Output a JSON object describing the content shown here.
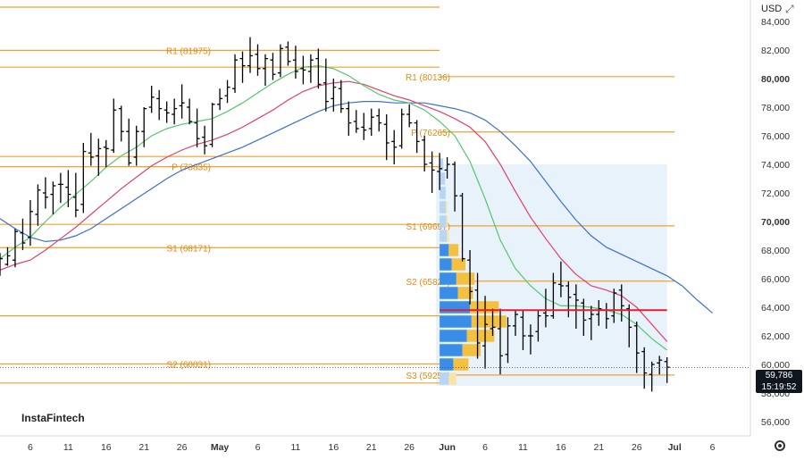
{
  "header": {
    "currency": "USD",
    "window_controls": [
      {
        "name": "expand",
        "glyph": "⤢"
      },
      {
        "name": "close",
        "glyph": "✕"
      }
    ]
  },
  "brand": {
    "logo_text": "InstaFintech"
  },
  "price_badge": {
    "price": "59,786",
    "time": "15:19:52"
  },
  "colors": {
    "pivot": "#f0a030",
    "pivot_text": "#e08a10",
    "candle": "#000000",
    "ma_fast": "#55c66a",
    "ma_mid": "#e0406a",
    "ma_slow": "#3a70d0",
    "poc": "#e02030",
    "vp_blue": "#3a8ee8",
    "vp_blue_light": "#b6d6f4",
    "vp_yellow": "#f4c040",
    "vp_yellow_light": "#f8e4a8",
    "vp_box": "#e8f2fb"
  },
  "chart_data": {
    "type": "line",
    "y_axis": {
      "ticks": [
        "56,000",
        "58,000",
        "60,000",
        "62,000",
        "64,000",
        "66,000",
        "68,000",
        "70,000",
        "72,000",
        "74,000",
        "76,000",
        "78,000",
        "80,000",
        "82,000",
        "84,000"
      ],
      "tick_values": [
        56000,
        58000,
        60000,
        62000,
        64000,
        66000,
        68000,
        70000,
        72000,
        74000,
        76000,
        78000,
        80000,
        82000,
        84000
      ],
      "bold_ticks": [
        "70,000",
        "80,000"
      ],
      "range": [
        55000,
        85500
      ]
    },
    "x_axis": {
      "ticks": [
        {
          "label": "6",
          "day": 6
        },
        {
          "label": "11",
          "day": 11
        },
        {
          "label": "16",
          "day": 16
        },
        {
          "label": "21",
          "day": 21
        },
        {
          "label": "26",
          "day": 26
        },
        {
          "label": "May",
          "day": 31,
          "bold": true
        },
        {
          "label": "6",
          "day": 36
        },
        {
          "label": "11",
          "day": 41
        },
        {
          "label": "16",
          "day": 46
        },
        {
          "label": "21",
          "day": 51
        },
        {
          "label": "26",
          "day": 56
        },
        {
          "label": "Jun",
          "day": 61,
          "bold": true
        },
        {
          "label": "6",
          "day": 66
        },
        {
          "label": "11",
          "day": 71
        },
        {
          "label": "16",
          "day": 76
        },
        {
          "label": "21",
          "day": 81
        },
        {
          "label": "26",
          "day": 86
        },
        {
          "label": "Jul",
          "day": 91,
          "bold": true
        },
        {
          "label": "6",
          "day": 96
        }
      ],
      "range": [
        2,
        101
      ]
    },
    "pivots_prev": [
      {
        "label": "",
        "value": 85000
      },
      {
        "label": "R1 (81975)",
        "value": 81975
      },
      {
        "label": "",
        "value": 80800
      },
      {
        "label": "P (73835)",
        "value": 73835
      },
      {
        "label": "",
        "value": 74550
      },
      {
        "label": "S1 (68171)",
        "value": 68171
      },
      {
        "label": "",
        "value": 69800
      },
      {
        "label": "",
        "value": 63400
      },
      {
        "label": "S2 (60031)",
        "value": 60031
      },
      {
        "label": "",
        "value": 58700
      }
    ],
    "pivots_curr": [
      {
        "label": "R1 (80136)",
        "value": 80136
      },
      {
        "label": "P (76265)",
        "value": 76265
      },
      {
        "label": "S1 (69697)",
        "value": 69697
      },
      {
        "label": "S2 (65827)",
        "value": 65827
      },
      {
        "label": "S3 (59259)",
        "value": 59259
      }
    ],
    "poc": {
      "value": 63800,
      "from_day": 60,
      "to_day": 90
    },
    "current_price": {
      "value": 59786
    },
    "ohlc": [
      [
        2,
        66600,
        67800,
        66200,
        67400
      ],
      [
        3,
        67000,
        68200,
        66900,
        67600
      ],
      [
        4,
        67300,
        69500,
        66800,
        69300
      ],
      [
        5,
        69200,
        70200,
        68000,
        68500
      ],
      [
        6,
        68900,
        71500,
        68300,
        70700
      ],
      [
        7,
        70500,
        72600,
        69700,
        72200
      ],
      [
        8,
        72000,
        73100,
        70900,
        71700
      ],
      [
        9,
        71900,
        72800,
        70500,
        72500
      ],
      [
        10,
        72600,
        73400,
        71300,
        72600
      ],
      [
        11,
        72400,
        73600,
        71000,
        71900
      ],
      [
        12,
        71700,
        73400,
        70300,
        70800
      ],
      [
        13,
        71200,
        75500,
        70600,
        74900
      ],
      [
        14,
        74800,
        76200,
        73900,
        74500
      ],
      [
        15,
        74600,
        75800,
        73200,
        75100
      ],
      [
        16,
        75200,
        75700,
        73800,
        75100
      ],
      [
        17,
        75000,
        78600,
        74800,
        77800
      ],
      [
        18,
        77900,
        78100,
        75600,
        76300
      ],
      [
        19,
        76300,
        77200,
        73900,
        74100
      ],
      [
        20,
        74500,
        76700,
        73900,
        76300
      ],
      [
        21,
        76300,
        78000,
        75200,
        77900
      ],
      [
        22,
        78000,
        79500,
        77600,
        78700
      ],
      [
        23,
        78600,
        79200,
        77100,
        77900
      ],
      [
        24,
        77800,
        78400,
        76900,
        77600
      ],
      [
        25,
        77500,
        78600,
        76800,
        77900
      ],
      [
        26,
        78100,
        79600,
        77200,
        78300
      ],
      [
        27,
        78000,
        78600,
        76800,
        77000
      ],
      [
        28,
        76900,
        77900,
        75200,
        75800
      ],
      [
        29,
        75900,
        76700,
        74700,
        75300
      ],
      [
        30,
        75400,
        78300,
        75200,
        78200
      ],
      [
        31,
        78200,
        79300,
        77800,
        78600
      ],
      [
        32,
        78800,
        79900,
        78300,
        79400
      ],
      [
        33,
        79300,
        81700,
        79000,
        81300
      ],
      [
        34,
        81400,
        81900,
        79700,
        80900
      ],
      [
        35,
        80900,
        82900,
        80400,
        81600
      ],
      [
        36,
        81700,
        82400,
        80200,
        80700
      ],
      [
        37,
        80700,
        81700,
        79500,
        81400
      ],
      [
        38,
        81300,
        81800,
        79900,
        80300
      ],
      [
        39,
        80400,
        82400,
        80100,
        82100
      ],
      [
        40,
        82200,
        82600,
        80900,
        81200
      ],
      [
        41,
        81300,
        82300,
        80000,
        80500
      ],
      [
        42,
        80700,
        81600,
        79600,
        80600
      ],
      [
        43,
        80500,
        81700,
        79700,
        81300
      ],
      [
        44,
        81400,
        82100,
        79300,
        79600
      ],
      [
        45,
        79700,
        81400,
        77700,
        78400
      ],
      [
        46,
        78600,
        80000,
        77700,
        79400
      ],
      [
        47,
        79300,
        79900,
        77600,
        77900
      ],
      [
        48,
        77900,
        78400,
        76000,
        76900
      ],
      [
        49,
        77000,
        77800,
        76200,
        76500
      ],
      [
        50,
        76600,
        77600,
        75700,
        76400
      ],
      [
        51,
        76500,
        77900,
        76000,
        77300
      ],
      [
        52,
        77400,
        77900,
        76300,
        76900
      ],
      [
        53,
        76800,
        77500,
        74300,
        75500
      ],
      [
        54,
        75600,
        76400,
        74000,
        75200
      ],
      [
        55,
        75300,
        77900,
        75100,
        77500
      ],
      [
        56,
        77500,
        78200,
        76600,
        76900
      ],
      [
        57,
        76900,
        77100,
        74800,
        75600
      ],
      [
        58,
        75700,
        76000,
        73500,
        74000
      ],
      [
        59,
        74100,
        74900,
        72000,
        73600
      ],
      [
        60,
        73500,
        74800,
        72200,
        73700
      ],
      [
        61,
        73600,
        74500,
        73000,
        74000
      ],
      [
        62,
        74000,
        74200,
        70700,
        71800
      ],
      [
        63,
        71800,
        72000,
        67200,
        67400
      ],
      [
        64,
        67300,
        68000,
        64200,
        65100
      ],
      [
        65,
        65200,
        66400,
        60400,
        61500
      ],
      [
        66,
        61300,
        64800,
        59700,
        62800
      ],
      [
        67,
        62500,
        63900,
        62000,
        62600
      ],
      [
        68,
        62500,
        63900,
        59300,
        60600
      ],
      [
        69,
        60700,
        63300,
        60100,
        62700
      ],
      [
        70,
        62700,
        63800,
        62000,
        63500
      ],
      [
        71,
        63300,
        63800,
        61000,
        62000
      ],
      [
        72,
        62000,
        62800,
        60700,
        62000
      ],
      [
        73,
        62300,
        63800,
        61600,
        63400
      ],
      [
        74,
        63600,
        65300,
        62600,
        63400
      ],
      [
        75,
        63400,
        66400,
        63200,
        65700
      ],
      [
        76,
        65600,
        67200,
        64700,
        65500
      ],
      [
        77,
        65500,
        65800,
        63300,
        64700
      ],
      [
        78,
        64900,
        65600,
        62500,
        64500
      ],
      [
        79,
        64300,
        64600,
        62000,
        63100
      ],
      [
        80,
        63200,
        64100,
        61700,
        63500
      ],
      [
        81,
        63500,
        64500,
        62700,
        63900
      ],
      [
        82,
        63800,
        64300,
        62500,
        63200
      ],
      [
        83,
        63400,
        65300,
        62900,
        65000
      ],
      [
        84,
        65200,
        65600,
        63000,
        64100
      ],
      [
        85,
        63900,
        64200,
        61200,
        62600
      ],
      [
        86,
        62700,
        63000,
        59400,
        60800
      ],
      [
        87,
        60900,
        61200,
        58300,
        59400
      ],
      [
        88,
        59300,
        60200,
        58100,
        60000
      ],
      [
        89,
        60100,
        60600,
        59300,
        60300
      ],
      [
        90,
        60200,
        60500,
        58700,
        59800
      ]
    ],
    "ma_fast": [
      [
        2,
        67400
      ],
      [
        4,
        68200
      ],
      [
        6,
        68900
      ],
      [
        8,
        70000
      ],
      [
        10,
        71000
      ],
      [
        12,
        71900
      ],
      [
        14,
        72800
      ],
      [
        16,
        73800
      ],
      [
        18,
        74600
      ],
      [
        20,
        75200
      ],
      [
        22,
        76000
      ],
      [
        24,
        76500
      ],
      [
        26,
        76800
      ],
      [
        28,
        77000
      ],
      [
        30,
        77200
      ],
      [
        32,
        77700
      ],
      [
        34,
        78300
      ],
      [
        36,
        79000
      ],
      [
        38,
        79700
      ],
      [
        40,
        80300
      ],
      [
        42,
        80800
      ],
      [
        44,
        80900
      ],
      [
        46,
        80700
      ],
      [
        48,
        80200
      ],
      [
        50,
        79500
      ],
      [
        52,
        78900
      ],
      [
        54,
        78500
      ],
      [
        56,
        78300
      ],
      [
        58,
        77800
      ],
      [
        60,
        77000
      ],
      [
        62,
        76000
      ],
      [
        64,
        74200
      ],
      [
        66,
        71600
      ],
      [
        68,
        68700
      ],
      [
        70,
        66700
      ],
      [
        72,
        65500
      ],
      [
        74,
        64600
      ],
      [
        76,
        64100
      ],
      [
        78,
        64100
      ],
      [
        80,
        64000
      ],
      [
        82,
        63800
      ],
      [
        84,
        63500
      ],
      [
        86,
        62800
      ],
      [
        88,
        61800
      ],
      [
        90,
        61000
      ]
    ],
    "ma_mid": [
      [
        2,
        66600
      ],
      [
        4,
        67000
      ],
      [
        6,
        67300
      ],
      [
        8,
        68000
      ],
      [
        10,
        68800
      ],
      [
        12,
        69600
      ],
      [
        14,
        70500
      ],
      [
        16,
        71400
      ],
      [
        18,
        72300
      ],
      [
        20,
        73100
      ],
      [
        22,
        73900
      ],
      [
        24,
        74500
      ],
      [
        26,
        75000
      ],
      [
        28,
        75400
      ],
      [
        30,
        75700
      ],
      [
        32,
        76100
      ],
      [
        34,
        76600
      ],
      [
        36,
        77200
      ],
      [
        38,
        77800
      ],
      [
        40,
        78500
      ],
      [
        42,
        79100
      ],
      [
        44,
        79500
      ],
      [
        46,
        79700
      ],
      [
        48,
        79800
      ],
      [
        50,
        79600
      ],
      [
        52,
        79200
      ],
      [
        54,
        78800
      ],
      [
        56,
        78500
      ],
      [
        58,
        78100
      ],
      [
        60,
        77700
      ],
      [
        62,
        77200
      ],
      [
        64,
        76600
      ],
      [
        66,
        75600
      ],
      [
        68,
        74000
      ],
      [
        70,
        72100
      ],
      [
        72,
        70300
      ],
      [
        74,
        68800
      ],
      [
        76,
        67400
      ],
      [
        78,
        66300
      ],
      [
        80,
        65500
      ],
      [
        82,
        65200
      ],
      [
        84,
        64800
      ],
      [
        86,
        64000
      ],
      [
        88,
        62800
      ],
      [
        90,
        61600
      ]
    ],
    "ma_slow": [
      [
        2,
        70200
      ],
      [
        4,
        69500
      ],
      [
        6,
        68900
      ],
      [
        8,
        68600
      ],
      [
        10,
        68700
      ],
      [
        12,
        69000
      ],
      [
        14,
        69500
      ],
      [
        16,
        70200
      ],
      [
        18,
        70900
      ],
      [
        20,
        71600
      ],
      [
        22,
        72300
      ],
      [
        24,
        73000
      ],
      [
        26,
        73600
      ],
      [
        28,
        74000
      ],
      [
        30,
        74400
      ],
      [
        32,
        74800
      ],
      [
        34,
        75200
      ],
      [
        36,
        75700
      ],
      [
        38,
        76200
      ],
      [
        40,
        76700
      ],
      [
        42,
        77200
      ],
      [
        44,
        77700
      ],
      [
        46,
        78100
      ],
      [
        48,
        78300
      ],
      [
        50,
        78400
      ],
      [
        52,
        78400
      ],
      [
        54,
        78300
      ],
      [
        56,
        78300
      ],
      [
        58,
        78300
      ],
      [
        60,
        78100
      ],
      [
        62,
        77900
      ],
      [
        64,
        77600
      ],
      [
        66,
        77100
      ],
      [
        68,
        76300
      ],
      [
        70,
        75300
      ],
      [
        72,
        74200
      ],
      [
        74,
        72800
      ],
      [
        76,
        71400
      ],
      [
        78,
        70100
      ],
      [
        80,
        69000
      ],
      [
        82,
        68200
      ],
      [
        84,
        67700
      ],
      [
        86,
        67200
      ],
      [
        88,
        66700
      ],
      [
        90,
        66200
      ],
      [
        92,
        65500
      ],
      [
        94,
        64500
      ],
      [
        96,
        63600
      ]
    ],
    "volume_profile": {
      "from_day": 60,
      "to_day": 90,
      "top": 74000,
      "bottom": 58500,
      "bins": [
        {
          "price": 74000,
          "blue": 0.12,
          "yellow": 0.0
        },
        {
          "price": 73000,
          "blue": 0.18,
          "yellow": 0.0
        },
        {
          "price": 72000,
          "blue": 0.2,
          "yellow": 0.0
        },
        {
          "price": 71000,
          "blue": 0.2,
          "yellow": 0.05
        },
        {
          "price": 70000,
          "blue": 0.22,
          "yellow": 0.05
        },
        {
          "price": 69000,
          "blue": 0.24,
          "yellow": 0.07
        },
        {
          "price": 68000,
          "blue": 0.3,
          "yellow": 0.32
        },
        {
          "price": 67000,
          "blue": 0.4,
          "yellow": 0.45
        },
        {
          "price": 66000,
          "blue": 0.55,
          "yellow": 0.6
        },
        {
          "price": 65000,
          "blue": 0.6,
          "yellow": 0.5
        },
        {
          "price": 64000,
          "blue": 1.0,
          "yellow": 0.95
        },
        {
          "price": 63000,
          "blue": 1.05,
          "yellow": 1.15
        },
        {
          "price": 62000,
          "blue": 0.9,
          "yellow": 0.9
        },
        {
          "price": 61000,
          "blue": 0.75,
          "yellow": 0.6
        },
        {
          "price": 60000,
          "blue": 0.45,
          "yellow": 0.5
        },
        {
          "price": 59000,
          "blue": 0.3,
          "yellow": 0.25
        }
      ]
    }
  }
}
